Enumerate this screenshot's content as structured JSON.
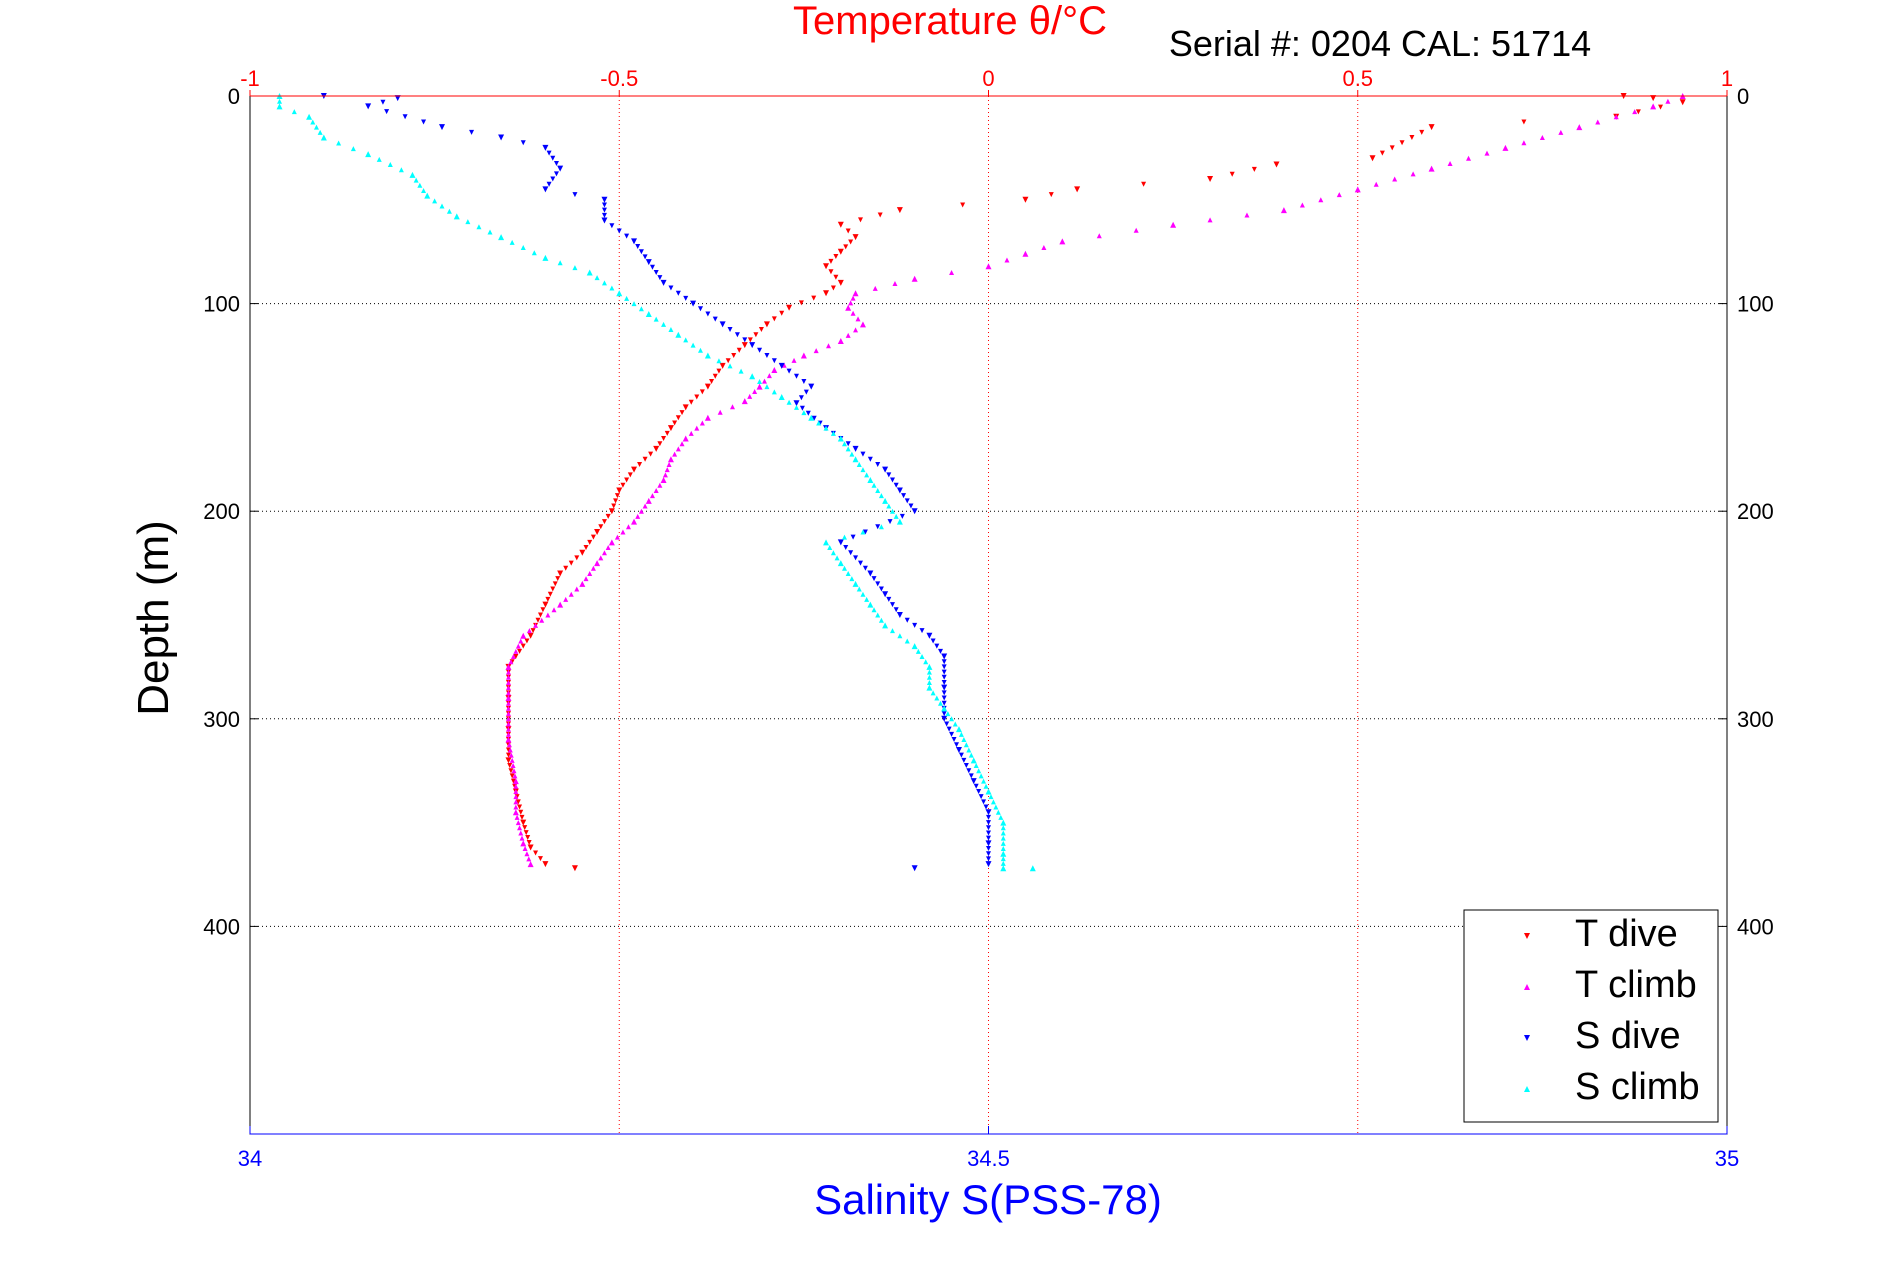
{
  "chart_data": {
    "type": "scatter",
    "title": "Temperature θ/°C",
    "annotation": "Serial #: 0204  CAL: 51714",
    "xlabel": "Salinity S(PSS-78)",
    "ylabel": "Depth (m)",
    "temperature_axis": {
      "position": "top",
      "lim": [
        -1,
        1
      ],
      "ticks": [
        -1,
        -0.5,
        0,
        0.5,
        1
      ],
      "tick_labels": [
        "-1",
        "-0.5",
        "0",
        "0.5",
        "1"
      ],
      "color": "#ff0000"
    },
    "salinity_axis": {
      "position": "bottom",
      "lim": [
        34,
        35
      ],
      "ticks": [
        34,
        34.5,
        35
      ],
      "tick_labels": [
        "34",
        "34.5",
        "35"
      ],
      "color": "#0000ff"
    },
    "depth_axis": {
      "lim": [
        0,
        500
      ],
      "reversed": true,
      "ticks": [
        0,
        100,
        200,
        300,
        400
      ],
      "tick_labels": [
        "0",
        "100",
        "200",
        "300",
        "400"
      ]
    },
    "grid": true,
    "legend_position": "bottom-right",
    "series": [
      {
        "name": "T dive",
        "axis": "temperature",
        "color": "#ff0000",
        "marker": "triangle-down",
        "points": [
          [
            0.86,
            0
          ],
          [
            0.9,
            1
          ],
          [
            0.94,
            3
          ],
          [
            0.85,
            10
          ],
          [
            0.6,
            15
          ],
          [
            0.52,
            30
          ],
          [
            0.39,
            33
          ],
          [
            0.3,
            40
          ],
          [
            0.12,
            45
          ],
          [
            0.05,
            50
          ],
          [
            -0.12,
            55
          ],
          [
            -0.2,
            62
          ],
          [
            -0.18,
            68
          ],
          [
            -0.2,
            75
          ],
          [
            -0.22,
            82
          ],
          [
            -0.2,
            90
          ],
          [
            -0.22,
            95
          ],
          [
            -0.27,
            102
          ],
          [
            -0.3,
            110
          ],
          [
            -0.33,
            120
          ],
          [
            -0.36,
            130
          ],
          [
            -0.38,
            140
          ],
          [
            -0.41,
            150
          ],
          [
            -0.43,
            160
          ],
          [
            -0.45,
            170
          ],
          [
            -0.48,
            180
          ],
          [
            -0.5,
            190
          ],
          [
            -0.51,
            200
          ],
          [
            -0.53,
            210
          ],
          [
            -0.55,
            220
          ],
          [
            -0.58,
            230
          ],
          [
            -0.6,
            245
          ],
          [
            -0.62,
            260
          ],
          [
            -0.65,
            275
          ],
          [
            -0.65,
            290
          ],
          [
            -0.65,
            305
          ],
          [
            -0.65,
            320
          ],
          [
            -0.64,
            335
          ],
          [
            -0.63,
            350
          ],
          [
            -0.62,
            362
          ],
          [
            -0.6,
            370
          ],
          [
            -0.56,
            372
          ]
        ]
      },
      {
        "name": "T climb",
        "axis": "temperature",
        "color": "#ff00ff",
        "marker": "triangle-up",
        "points": [
          [
            0.94,
            0
          ],
          [
            0.9,
            5
          ],
          [
            0.8,
            15
          ],
          [
            0.7,
            25
          ],
          [
            0.6,
            35
          ],
          [
            0.5,
            45
          ],
          [
            0.4,
            55
          ],
          [
            0.25,
            62
          ],
          [
            0.1,
            70
          ],
          [
            0.05,
            76
          ],
          [
            0.0,
            82
          ],
          [
            -0.1,
            88
          ],
          [
            -0.18,
            95
          ],
          [
            -0.19,
            102
          ],
          [
            -0.17,
            110
          ],
          [
            -0.2,
            118
          ],
          [
            -0.25,
            125
          ],
          [
            -0.29,
            132
          ],
          [
            -0.31,
            140
          ],
          [
            -0.33,
            147
          ],
          [
            -0.38,
            155
          ],
          [
            -0.41,
            165
          ],
          [
            -0.43,
            175
          ],
          [
            -0.44,
            185
          ],
          [
            -0.46,
            195
          ],
          [
            -0.48,
            205
          ],
          [
            -0.51,
            215
          ],
          [
            -0.53,
            225
          ],
          [
            -0.55,
            235
          ],
          [
            -0.58,
            245
          ],
          [
            -0.63,
            260
          ],
          [
            -0.65,
            275
          ],
          [
            -0.65,
            290
          ],
          [
            -0.65,
            310
          ],
          [
            -0.64,
            330
          ],
          [
            -0.64,
            345
          ],
          [
            -0.63,
            360
          ],
          [
            -0.62,
            370
          ]
        ]
      },
      {
        "name": "S dive",
        "axis": "salinity",
        "color": "#0000ff",
        "marker": "triangle-down",
        "points": [
          [
            34.05,
            0
          ],
          [
            34.1,
            1
          ],
          [
            34.08,
            5
          ],
          [
            34.13,
            15
          ],
          [
            34.17,
            20
          ],
          [
            34.2,
            25
          ],
          [
            34.21,
            35
          ],
          [
            34.2,
            45
          ],
          [
            34.24,
            50
          ],
          [
            34.24,
            60
          ],
          [
            34.26,
            70
          ],
          [
            34.27,
            80
          ],
          [
            34.28,
            90
          ],
          [
            34.3,
            100
          ],
          [
            34.32,
            110
          ],
          [
            34.34,
            120
          ],
          [
            34.36,
            130
          ],
          [
            34.38,
            140
          ],
          [
            34.37,
            148
          ],
          [
            34.39,
            160
          ],
          [
            34.41,
            170
          ],
          [
            34.43,
            180
          ],
          [
            34.44,
            190
          ],
          [
            34.45,
            200
          ],
          [
            34.4,
            215
          ],
          [
            34.42,
            230
          ],
          [
            34.43,
            240
          ],
          [
            34.44,
            250
          ],
          [
            34.46,
            260
          ],
          [
            34.47,
            270
          ],
          [
            34.47,
            285
          ],
          [
            34.47,
            300
          ],
          [
            34.48,
            315
          ],
          [
            34.49,
            330
          ],
          [
            34.5,
            345
          ],
          [
            34.5,
            360
          ],
          [
            34.5,
            370
          ],
          [
            34.45,
            372
          ]
        ]
      },
      {
        "name": "S climb",
        "axis": "salinity",
        "color": "#00ffff",
        "marker": "triangle-up",
        "points": [
          [
            34.02,
            0
          ],
          [
            34.02,
            5
          ],
          [
            34.04,
            10
          ],
          [
            34.05,
            20
          ],
          [
            34.08,
            28
          ],
          [
            34.11,
            38
          ],
          [
            34.12,
            48
          ],
          [
            34.14,
            58
          ],
          [
            34.17,
            68
          ],
          [
            34.2,
            78
          ],
          [
            34.23,
            85
          ],
          [
            34.25,
            95
          ],
          [
            34.27,
            105
          ],
          [
            34.29,
            115
          ],
          [
            34.31,
            125
          ],
          [
            34.34,
            135
          ],
          [
            34.36,
            145
          ],
          [
            34.38,
            155
          ],
          [
            34.4,
            165
          ],
          [
            34.41,
            175
          ],
          [
            34.42,
            185
          ],
          [
            34.43,
            195
          ],
          [
            34.44,
            205
          ],
          [
            34.39,
            215
          ],
          [
            34.4,
            225
          ],
          [
            34.41,
            235
          ],
          [
            34.42,
            245
          ],
          [
            34.43,
            255
          ],
          [
            34.45,
            265
          ],
          [
            34.46,
            275
          ],
          [
            34.46,
            285
          ],
          [
            34.47,
            295
          ],
          [
            34.48,
            305
          ],
          [
            34.49,
            320
          ],
          [
            34.5,
            335
          ],
          [
            34.51,
            350
          ],
          [
            34.51,
            365
          ],
          [
            34.51,
            372
          ],
          [
            34.53,
            372
          ]
        ]
      }
    ]
  }
}
